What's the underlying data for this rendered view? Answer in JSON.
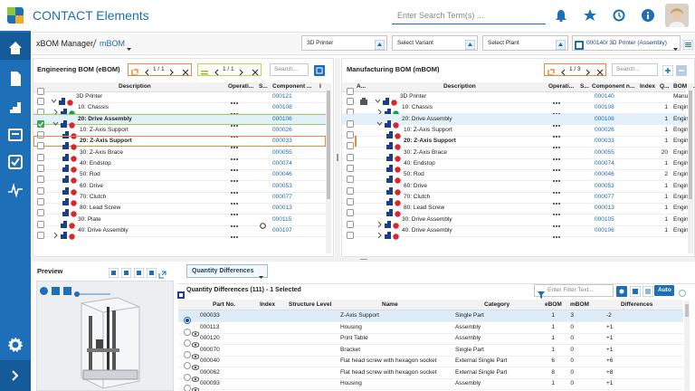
{
  "app": {
    "title": "CONTACT Elements",
    "search": "Enter Search Term(s) ..."
  },
  "toolbar": {
    "breadcrumb": [
      "xBOM Manager",
      "mBOM"
    ],
    "product": "3D Printer",
    "variant": "Select Variant",
    "plant": "Select Plant",
    "assembly": "000140/ 3D Printer (Assembly)"
  },
  "ebom": {
    "title": "Engineering BOM (eBOM)",
    "pager1": "1 / 1",
    "pager2": "1 / 1",
    "search": "Search...",
    "columns": [
      "Description",
      "Operati...",
      "S...",
      "Component ...",
      "I"
    ],
    "rows": [
      {
        "description": "3D Printer",
        "component": "000121"
      },
      {
        "description": "10: Chassis",
        "component": "000108"
      },
      {
        "description": "20: Drive Assembly",
        "component": "000106"
      },
      {
        "description": "10: Z-Axis Support",
        "component": "000026"
      },
      {
        "description": "20: Z-Axis Support",
        "component": "000033"
      },
      {
        "description": "30: Z-Axis Brace",
        "component": "000055"
      },
      {
        "description": "40: Endstop",
        "component": "000074"
      },
      {
        "description": "50: Rod",
        "component": "000046"
      },
      {
        "description": "60: Drive",
        "component": "000053"
      },
      {
        "description": "70: Clutch",
        "component": "000077"
      },
      {
        "description": "80: Lead Screw",
        "component": "000013"
      },
      {
        "description": "30: Plate",
        "component": "000115"
      },
      {
        "description": "40: Drive Assembly",
        "component": "000107"
      }
    ]
  },
  "mbom": {
    "title": "Manufacturing BOM (mBOM)",
    "pager": "1 / 3",
    "search": "Search...",
    "columns": [
      "A...",
      "Description",
      "Operati...",
      "S...",
      "Component n...",
      "Index",
      "Q...",
      "BOM T..."
    ],
    "rows": [
      {
        "description": "3D Printer",
        "component": "000140",
        "bom_type": "Manufa"
      },
      {
        "description": "10: Chassis",
        "component": "000108",
        "quantity": 1,
        "bom_type": "Engine"
      },
      {
        "description": "20: Drive Assembly",
        "component": "000106",
        "quantity": 1,
        "bom_type": "Engine"
      },
      {
        "description": "10: Z-Axis Support",
        "component": "000026",
        "quantity": 1,
        "bom_type": "Engine"
      },
      {
        "description": "20: Z-Axis Support",
        "component": "000033",
        "quantity": 1,
        "bom_type": "Engine"
      },
      {
        "description": "30: Z-Axis Brace",
        "component": "000055",
        "quantity": 20,
        "bom_type": "Engine"
      },
      {
        "description": "40: Endstop",
        "component": "000074",
        "quantity": 1,
        "bom_type": "Engine"
      },
      {
        "description": "50: Rod",
        "component": "000046",
        "quantity": 2,
        "bom_type": "Engine"
      },
      {
        "description": "60: Drive",
        "component": "000053",
        "quantity": 1,
        "bom_type": "Engin"
      },
      {
        "description": "70: Clutch",
        "component": "000077",
        "quantity": 1,
        "bom_type": "Engin"
      },
      {
        "description": "80: Lead Screw",
        "component": "000013",
        "quantity": 1,
        "bom_type": "Engin"
      },
      {
        "description": "30: Drive Assembly",
        "component": "000105",
        "quantity": 1,
        "bom_type": "Engin"
      },
      {
        "description": "40: Drive Assembly",
        "component": "000106",
        "quantity": 1,
        "bom_type": "Engin"
      }
    ]
  },
  "preview": {
    "title": "Preview"
  },
  "differences": {
    "menu": "Quantity Differences",
    "title": "Quantity Differences (111) - 1 Selected",
    "filter": "Enter Filter Text...",
    "auto": "Auto",
    "columns": [
      "Part No.",
      "Index",
      "Structure Level",
      "Name",
      "Category",
      "eBOM",
      "mBOM",
      "Differences"
    ],
    "rows": [
      {
        "part": "000033",
        "name": "Z-Axis Support",
        "category": "Single Part",
        "ebom": 1,
        "mbom": 3,
        "difference": "-2"
      },
      {
        "part": "000113",
        "name": "Housing",
        "category": "Assembly",
        "ebom": 1,
        "mbom": 0,
        "difference": "+1"
      },
      {
        "part": "000120",
        "name": "Print Table",
        "category": "Assembly",
        "ebom": 1,
        "mbom": 0,
        "difference": "+1"
      },
      {
        "part": "000070",
        "name": "Bracket",
        "category": "Single Part",
        "ebom": 1,
        "mbom": 0,
        "difference": "+1"
      },
      {
        "part": "000040",
        "name": "Flat head screw with hexagon socket",
        "category": "External Single Part",
        "ebom": 6,
        "mbom": 0,
        "difference": "+6"
      },
      {
        "part": "000062",
        "name": "Flat head screw with hexagon socket",
        "category": "External Single Part",
        "ebom": 8,
        "mbom": 0,
        "difference": "+8"
      },
      {
        "part": "000093",
        "name": "Housing",
        "category": "Assembly",
        "ebom": 1,
        "mbom": 0,
        "difference": "+1"
      }
    ]
  }
}
